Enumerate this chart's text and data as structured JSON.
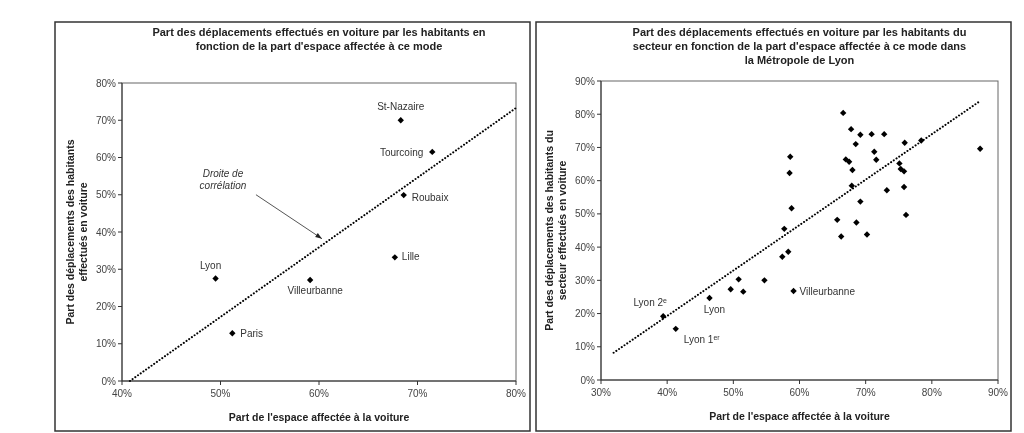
{
  "chart_data": [
    {
      "type": "scatter",
      "title": "Part des déplacements effectués en voiture par les habitants en fonction de la part d'espace affectée à ce mode",
      "xlabel": "Part de l'espace affectée à la voiture",
      "ylabel": "Part des déplacements des habitants effectués en voiture",
      "xlim": [
        40,
        80
      ],
      "xticks": [
        {
          "value": 40,
          "label": "40%"
        },
        {
          "value": 50,
          "label": "50%"
        },
        {
          "value": 60,
          "label": "60%"
        },
        {
          "value": 70,
          "label": "70%"
        },
        {
          "value": 80,
          "label": "80%"
        }
      ],
      "ylim": [
        0,
        80
      ],
      "yticks": [
        {
          "value": 0,
          "label": "0%"
        },
        {
          "value": 10,
          "label": "10%"
        },
        {
          "value": 20,
          "label": "20%"
        },
        {
          "value": 30,
          "label": "30%"
        },
        {
          "value": 40,
          "label": "40%"
        },
        {
          "value": 50,
          "label": "50%"
        },
        {
          "value": 60,
          "label": "60%"
        },
        {
          "value": 70,
          "label": "70%"
        },
        {
          "value": 80,
          "label": "80%"
        }
      ],
      "grid": false,
      "marker": "diamond",
      "series": [
        {
          "color": "#000000",
          "x": [
            68.3,
            71.5,
            68.6,
            67.7,
            49.5,
            59.1,
            51.2
          ],
          "values": [
            70,
            61.5,
            49.9,
            33.2,
            27.5,
            27.1,
            12.8
          ]
        },
        {
          "type": "line",
          "color": "#000000",
          "line_style": "dotted",
          "marker": "none",
          "x": [
            40.8,
            80
          ],
          "values": [
            0,
            73.3
          ]
        }
      ],
      "annotations": [
        {
          "text": "St-Nazaire",
          "x": 68.3,
          "y": 70
        },
        {
          "text": "Tourcoing",
          "x": 71.5,
          "y": 61.5
        },
        {
          "text": "Roubaix",
          "x": 68.6,
          "y": 49.9
        },
        {
          "text": "Lille",
          "x": 67.7,
          "y": 33.2
        },
        {
          "text": "Lyon",
          "x": 49.5,
          "y": 27.5
        },
        {
          "text": "Villeurbanne",
          "x": 59.1,
          "y": 27.1
        },
        {
          "text": "Paris",
          "x": 51.2,
          "y": 12.8
        },
        {
          "text": "Droite de corrélation",
          "x": 60.3,
          "y": 38.2
        }
      ]
    },
    {
      "type": "scatter",
      "title": "Part des déplacements effectués en voiture par les habitants du secteur en fonction de la part d'espace affectée à ce mode dans la Métropole de Lyon",
      "xlabel": "Part de l'espace affectée à la voiture",
      "ylabel": "Part des déplacements des habitants du secteur effectués en voiture",
      "xlim": [
        30,
        90
      ],
      "xticks": [
        {
          "value": 30,
          "label": "30%"
        },
        {
          "value": 40,
          "label": "40%"
        },
        {
          "value": 50,
          "label": "50%"
        },
        {
          "value": 60,
          "label": "60%"
        },
        {
          "value": 70,
          "label": "70%"
        },
        {
          "value": 80,
          "label": "80%"
        },
        {
          "value": 90,
          "label": "90%"
        }
      ],
      "ylim": [
        0,
        90
      ],
      "yticks": [
        {
          "value": 0,
          "label": "0%"
        },
        {
          "value": 10,
          "label": "10%"
        },
        {
          "value": 20,
          "label": "20%"
        },
        {
          "value": 30,
          "label": "30%"
        },
        {
          "value": 40,
          "label": "40%"
        },
        {
          "value": 50,
          "label": "50%"
        },
        {
          "value": 60,
          "label": "60%"
        },
        {
          "value": 70,
          "label": "70%"
        },
        {
          "value": 80,
          "label": "80%"
        },
        {
          "value": 90,
          "label": "90%"
        }
      ],
      "grid": false,
      "marker": "diamond",
      "series": [
        {
          "color": "#000000",
          "x": [
            66.6,
            67.8,
            69.2,
            68.5,
            70.9,
            72.8,
            75.9,
            78.4,
            87.3,
            71.3,
            71.6,
            67.0,
            67.5,
            68.0,
            67.9,
            75.1,
            75.3,
            75.8,
            75.8,
            73.2,
            69.2,
            76.1,
            65.7,
            68.6,
            66.3,
            70.2,
            58.6,
            58.5,
            58.8,
            57.7,
            57.4,
            58.3,
            54.7,
            50.8,
            49.6,
            51.5,
            46.4,
            59.1,
            39.4,
            41.3
          ],
          "values": [
            80.4,
            75.5,
            73.8,
            71.0,
            74.0,
            74.0,
            71.4,
            72.1,
            69.6,
            68.7,
            66.3,
            66.4,
            65.7,
            63.2,
            58.5,
            65.2,
            63.5,
            62.8,
            58.1,
            57.1,
            53.7,
            49.7,
            48.2,
            47.4,
            43.2,
            43.8,
            67.2,
            62.3,
            51.7,
            45.5,
            37.1,
            38.6,
            30.0,
            30.3,
            27.3,
            26.6,
            24.7,
            26.8,
            19.2,
            15.4
          ]
        },
        {
          "type": "line",
          "color": "#000000",
          "line_style": "dotted",
          "marker": "none",
          "x": [
            31.9,
            87.1
          ],
          "values": [
            8.2,
            83.7
          ]
        }
      ],
      "annotations": [
        {
          "text": "Lyon 2$^{e}$",
          "x": 39.4,
          "y": 19.2
        },
        {
          "text": "Lyon",
          "x": 46.4,
          "y": 24.7
        },
        {
          "text": "Lyon 1$^{er}$",
          "x": 41.3,
          "y": 15.4
        },
        {
          "text": "Villeurbanne",
          "x": 59.1,
          "y": 26.8
        }
      ]
    }
  ]
}
